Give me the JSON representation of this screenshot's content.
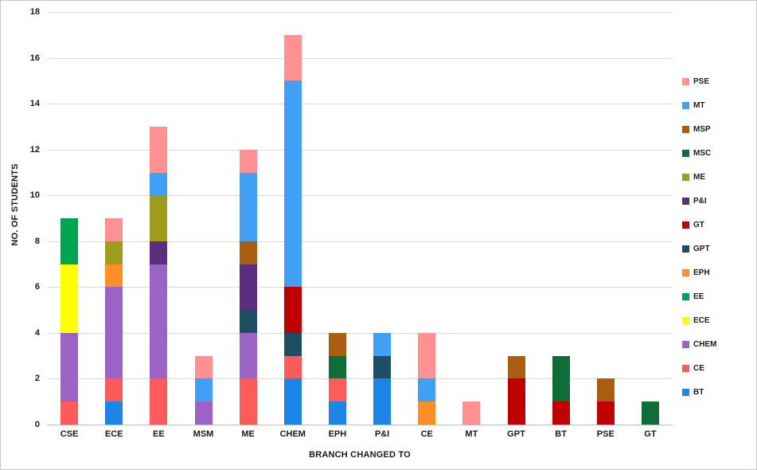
{
  "chart_data": {
    "type": "bar",
    "subtype": "stacked",
    "title": "",
    "xlabel": "BRANCH CHANGED TO",
    "ylabel": "NO. OF STUDENTS",
    "ylim": [
      0,
      18
    ],
    "ytick_step": 2,
    "grid": true,
    "legend_position": "right",
    "categories": [
      "CSE",
      "ECE",
      "EE",
      "MSM",
      "ME",
      "CHEM",
      "EPH",
      "P&I",
      "CE",
      "MT",
      "GPT",
      "BT",
      "PSE",
      "GT"
    ],
    "series": [
      {
        "name": "BT",
        "color": "#1b86e8",
        "values": [
          0,
          1,
          0,
          0,
          0,
          2,
          1,
          2,
          0,
          0,
          0,
          0,
          0,
          0
        ]
      },
      {
        "name": "CE",
        "color": "#ff5b5b",
        "values": [
          1,
          1,
          2,
          0,
          2,
          1,
          1,
          0,
          0,
          0,
          0,
          0,
          0,
          0
        ]
      },
      {
        "name": "CHEM",
        "color": "#9c63c6",
        "values": [
          3,
          4,
          5,
          1,
          2,
          0,
          0,
          0,
          0,
          0,
          0,
          0,
          0,
          0
        ]
      },
      {
        "name": "ECE",
        "color": "#ffff00",
        "values": [
          3,
          0,
          0,
          0,
          0,
          0,
          0,
          0,
          0,
          0,
          0,
          0,
          0,
          0
        ]
      },
      {
        "name": "EE",
        "color": "#00a551",
        "values": [
          2,
          0,
          0,
          0,
          0,
          0,
          0,
          0,
          0,
          0,
          0,
          0,
          0,
          0
        ]
      },
      {
        "name": "EPH",
        "color": "#ff8d28",
        "values": [
          0,
          1,
          0,
          0,
          0,
          0,
          0,
          0,
          1,
          0,
          0,
          0,
          0,
          0
        ]
      },
      {
        "name": "GPT",
        "color": "#1d4e63",
        "values": [
          0,
          0,
          0,
          0,
          1,
          1,
          0,
          1,
          0,
          0,
          0,
          0,
          0,
          0
        ]
      },
      {
        "name": "GT",
        "color": "#c00000",
        "values": [
          0,
          0,
          0,
          0,
          0,
          2,
          0,
          0,
          0,
          0,
          2,
          1,
          1,
          0
        ]
      },
      {
        "name": "P&I",
        "color": "#5c2e7e",
        "values": [
          0,
          0,
          1,
          0,
          2,
          0,
          0,
          0,
          0,
          0,
          0,
          0,
          0,
          0
        ]
      },
      {
        "name": "ME",
        "color": "#9d9c1d",
        "values": [
          0,
          1,
          2,
          0,
          0,
          0,
          0,
          0,
          0,
          0,
          0,
          0,
          0,
          0
        ]
      },
      {
        "name": "MSC",
        "color": "#0e6e38",
        "values": [
          0,
          0,
          0,
          0,
          0,
          0,
          1,
          0,
          0,
          0,
          0,
          2,
          0,
          1
        ]
      },
      {
        "name": "MSP",
        "color": "#ac5e10",
        "values": [
          0,
          0,
          0,
          0,
          1,
          0,
          1,
          0,
          0,
          0,
          1,
          0,
          1,
          0
        ]
      },
      {
        "name": "MT",
        "color": "#3fa0f5",
        "values": [
          0,
          0,
          1,
          1,
          3,
          9,
          0,
          1,
          1,
          0,
          0,
          0,
          0,
          0
        ]
      },
      {
        "name": "PSE",
        "color": "#ff9193",
        "values": [
          0,
          1,
          2,
          1,
          1,
          2,
          0,
          0,
          2,
          1,
          0,
          0,
          0,
          0
        ]
      }
    ]
  }
}
